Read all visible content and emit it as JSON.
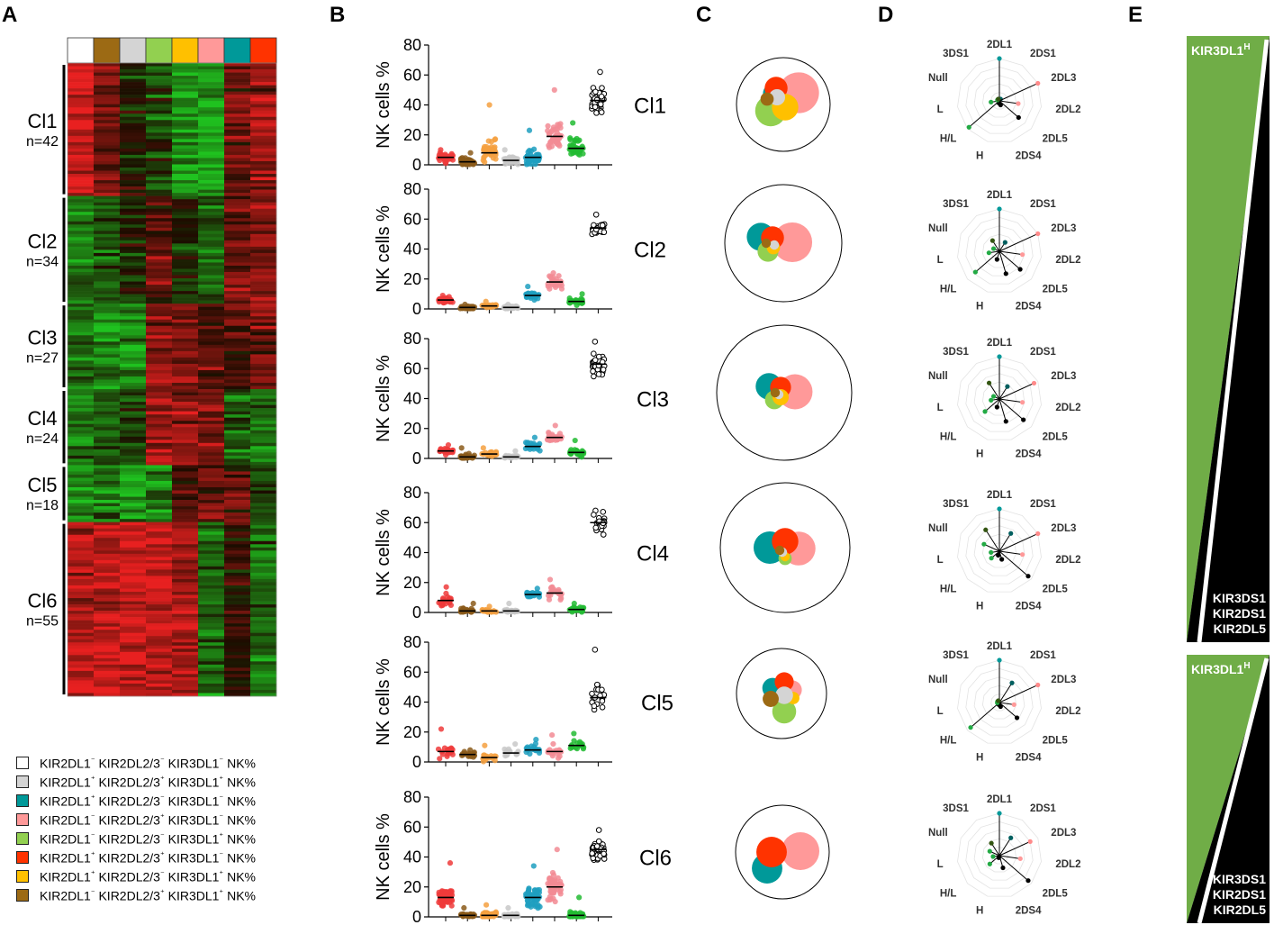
{
  "panels": {
    "a": "A",
    "b": "B",
    "c": "C",
    "d": "D",
    "e": "E"
  },
  "colors": {
    "white": "#ffffff",
    "brown": "#9c6a14",
    "gray": "#d4d4d4",
    "lightgreen": "#92d050",
    "yellow": "#ffc000",
    "pink": "#ff9999",
    "teal": "#009999",
    "red": "#ff3300",
    "heat_high": "#e82020",
    "heat_mid": "#1c0c00",
    "heat_low": "#1fc21f",
    "e_green": "#70ad47",
    "e_black": "#000000"
  },
  "heatmap": {
    "column_colors": [
      "#ffffff",
      "#9c6a14",
      "#d4d4d4",
      "#92d050",
      "#ffc000",
      "#ff9999",
      "#009999",
      "#ff3300"
    ],
    "clusters": [
      {
        "label": "Cl1",
        "n": "n=42",
        "count": 42,
        "means": [
          0.9,
          0.4,
          -0.1,
          -0.3,
          -0.7,
          -0.8,
          0.4,
          0.6
        ]
      },
      {
        "label": "Cl2",
        "n": "n=34",
        "count": 34,
        "means": [
          -0.6,
          -0.4,
          -0.2,
          0.3,
          -0.1,
          -0.5,
          0.4,
          0.5
        ]
      },
      {
        "label": "Cl3",
        "n": "n=27",
        "count": 27,
        "means": [
          -0.5,
          -0.7,
          -0.7,
          0.5,
          0.5,
          0.3,
          0.2,
          0.4
        ]
      },
      {
        "label": "Cl4",
        "n": "n=24",
        "count": 24,
        "means": [
          -0.5,
          -0.5,
          -0.3,
          0.6,
          0.6,
          0.5,
          -0.4,
          -0.5
        ]
      },
      {
        "label": "Cl5",
        "n": "n=18",
        "count": 18,
        "means": [
          -0.7,
          -0.6,
          -0.8,
          -0.6,
          0.2,
          0.4,
          0.3,
          -0.2
        ]
      },
      {
        "label": "Cl6",
        "n": "n=55",
        "count": 55,
        "means": [
          0.7,
          0.8,
          0.8,
          0.8,
          0.7,
          -0.5,
          0.1,
          -0.5
        ]
      }
    ]
  },
  "legend": [
    {
      "swatch": "#ffffff",
      "p": [
        "KIR2DL1",
        "⁻",
        " KIR2DL2/3",
        "⁻",
        " KIR3DL1",
        "⁻",
        " NK%"
      ]
    },
    {
      "swatch": "#d4d4d4",
      "p": [
        "KIR2DL1",
        "⁺",
        " KIR2DL2/3",
        "⁺",
        " KIR3DL1",
        "⁺",
        " NK%"
      ]
    },
    {
      "swatch": "#009999",
      "p": [
        "KIR2DL1",
        "⁺",
        " KIR2DL2/3",
        "⁻",
        " KIR3DL1",
        "⁻",
        " NK%"
      ]
    },
    {
      "swatch": "#ff9999",
      "p": [
        "KIR2DL1",
        "⁻",
        " KIR2DL2/3",
        "⁺",
        " KIR3DL1",
        "⁻",
        " NK%"
      ]
    },
    {
      "swatch": "#92d050",
      "p": [
        "KIR2DL1",
        "⁻",
        " KIR2DL2/3",
        "⁻",
        " KIR3DL1",
        "⁺",
        " NK%"
      ]
    },
    {
      "swatch": "#ff3300",
      "p": [
        "KIR2DL1",
        "⁺",
        " KIR2DL2/3",
        "⁺",
        " KIR3DL1",
        "⁻",
        " NK%"
      ]
    },
    {
      "swatch": "#ffc000",
      "p": [
        "KIR2DL1",
        "⁺",
        " KIR2DL2/3",
        "⁻",
        " KIR3DL1",
        "⁺",
        " NK%"
      ]
    },
    {
      "swatch": "#9c6a14",
      "p": [
        "KIR2DL1",
        "⁻",
        " KIR2DL2/3",
        "⁺",
        " KIR3DL1",
        "⁺",
        " NK%"
      ]
    }
  ],
  "chart_data": {
    "type": "scatter",
    "ylabel": "NK cells  %",
    "ylim": [
      0,
      80
    ],
    "yticks": [
      "0",
      "20",
      "40",
      "60",
      "80"
    ],
    "group_colors": [
      "#ee3b3b",
      "#8b5a1a",
      "#f4a040",
      "#c8c8c8",
      "#1f9fbf",
      "#f28b94",
      "#22bb33",
      "#ffffff"
    ],
    "clusters": [
      {
        "label": "Cl1",
        "n": 42,
        "medians": [
          5,
          2,
          8,
          3,
          5,
          19,
          11,
          43
        ],
        "spread": [
          3,
          3,
          8,
          3,
          5,
          10,
          6,
          10
        ],
        "maxes": [
          10,
          8,
          40,
          10,
          23,
          50,
          28,
          62
        ]
      },
      {
        "label": "Cl2",
        "n": 34,
        "medians": [
          6,
          1,
          2,
          1,
          9,
          18,
          5,
          54
        ],
        "spread": [
          2,
          1,
          1,
          1,
          3,
          4,
          2,
          5
        ],
        "maxes": [
          9,
          3,
          5,
          3,
          15,
          24,
          10,
          63
        ]
      },
      {
        "label": "Cl3",
        "n": 27,
        "medians": [
          5,
          1,
          3,
          1,
          8,
          14,
          4,
          63
        ],
        "spread": [
          2,
          2,
          2,
          1,
          3,
          3,
          3,
          9
        ],
        "maxes": [
          9,
          7,
          7,
          5,
          14,
          22,
          12,
          78
        ]
      },
      {
        "label": "Cl4",
        "n": 24,
        "medians": [
          8,
          1,
          1,
          1,
          12,
          13,
          2,
          60
        ],
        "spread": [
          4,
          2,
          1,
          1,
          2,
          4,
          2,
          7
        ],
        "maxes": [
          17,
          6,
          4,
          6,
          16,
          22,
          6,
          68
        ]
      },
      {
        "label": "Cl5",
        "n": 18,
        "medians": [
          7,
          5,
          3,
          6,
          8,
          7,
          11,
          43
        ],
        "spread": [
          4,
          2,
          3,
          3,
          4,
          4,
          3,
          10
        ],
        "maxes": [
          22,
          8,
          11,
          12,
          15,
          18,
          19,
          75
        ]
      },
      {
        "label": "Cl6",
        "n": 55,
        "medians": [
          13,
          1,
          1,
          1,
          13,
          20,
          1,
          45
        ],
        "spread": [
          6,
          1,
          2,
          1,
          7,
          8,
          2,
          7
        ],
        "maxes": [
          36,
          6,
          8,
          6,
          34,
          45,
          13,
          58
        ]
      }
    ],
    "bubbles_order": [
      "#009999",
      "#ff3300",
      "#ff9999",
      "#92d050",
      "#ffc000",
      "#d4d4d4",
      "#9c6a14"
    ],
    "bubbles": [
      {
        "cluster": "Cl1",
        "values": [
          5,
          6,
          19,
          11,
          8,
          3,
          2
        ]
      },
      {
        "cluster": "Cl2",
        "values": [
          9,
          6,
          18,
          5,
          2,
          1,
          1
        ]
      },
      {
        "cluster": "Cl3",
        "values": [
          8,
          5,
          14,
          4,
          3,
          1,
          1
        ]
      },
      {
        "cluster": "Cl4",
        "values": [
          12,
          8,
          13,
          2,
          1,
          1,
          1
        ]
      },
      {
        "cluster": "Cl5",
        "values": [
          8,
          7,
          7,
          11,
          3,
          6,
          5
        ]
      },
      {
        "cluster": "Cl6",
        "values": [
          13,
          13,
          20,
          1,
          1,
          1,
          1
        ]
      }
    ],
    "radar_axes": [
      "2DL1",
      "2DS1",
      "2DL3",
      "2DL2",
      "2DL5",
      "2DS4",
      "H",
      "H/L",
      "L",
      "Null",
      "3DS1"
    ],
    "radar_colors": [
      "#009999",
      "#005f5f",
      "#ff8a8a",
      "#ff9999",
      "#000000",
      "#000000",
      "#000000",
      "#22aa44",
      "#22aa44",
      "#22aa44",
      "#335511"
    ],
    "radars": [
      {
        "cluster": "Cl1",
        "values": [
          1.0,
          0.05,
          1.0,
          0.45,
          0.6,
          0.1,
          0.05,
          0.95,
          0.2,
          0.05,
          0.05
        ]
      },
      {
        "cluster": "Cl2",
        "values": [
          1.0,
          0.25,
          1.0,
          0.55,
          0.65,
          0.55,
          0.2,
          0.75,
          0.25,
          0.15,
          0.3
        ]
      },
      {
        "cluster": "Cl3",
        "values": [
          1.0,
          0.35,
          0.9,
          0.55,
          0.75,
          0.55,
          0.2,
          0.45,
          0.2,
          0.15,
          0.45
        ]
      },
      {
        "cluster": "Cl4",
        "values": [
          1.0,
          0.5,
          1.0,
          0.55,
          0.9,
          0.2,
          0.1,
          0.25,
          0.2,
          0.4,
          0.6
        ]
      },
      {
        "cluster": "Cl5",
        "values": [
          1.0,
          0.55,
          1.0,
          0.35,
          0.55,
          0.1,
          0.05,
          0.9,
          0.05,
          0.05,
          0.05
        ]
      },
      {
        "cluster": "Cl6",
        "values": [
          1.0,
          0.5,
          0.8,
          0.5,
          0.9,
          0.3,
          0.05,
          0.3,
          0.15,
          0.25,
          0.35
        ]
      }
    ],
    "wedges": [
      {
        "top": "KIR3DL1",
        "top_sup": "H",
        "bottom": [
          "KIR3DS1",
          "KIR2DS1",
          "KIR2DL5"
        ]
      },
      {
        "top": "KIR3DL1",
        "top_sup": "H",
        "bottom": [
          "KIR3DS1",
          "KIR2DS1",
          "KIR2DL5"
        ]
      }
    ]
  }
}
